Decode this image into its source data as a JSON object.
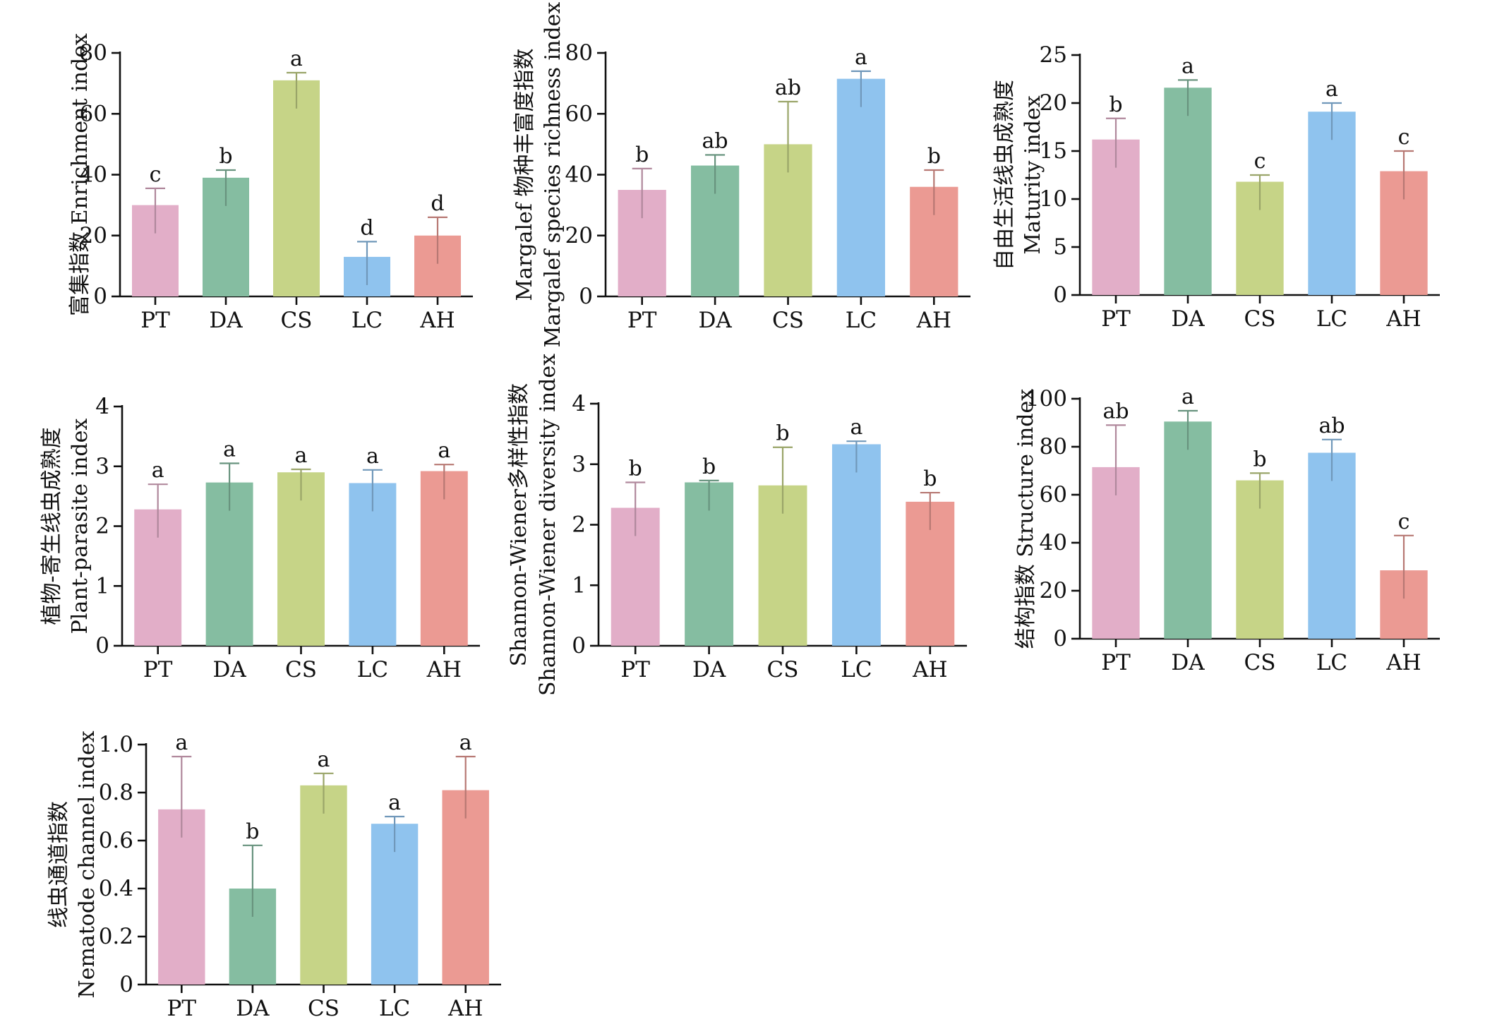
{
  "colors": {
    "PT": "#e2aec8",
    "DA": "#85bda1",
    "CS": "#c6d487",
    "LC": "#8fc3ee",
    "AH": "#eb9a93"
  },
  "chart_data": [
    {
      "type": "bar",
      "ylabel": [
        "富集指数 Enrichment index"
      ],
      "categories": [
        "PT",
        "DA",
        "CS",
        "LC",
        "AH"
      ],
      "values": [
        30,
        39,
        71,
        13,
        20
      ],
      "errors": [
        5.5,
        2.5,
        2.5,
        5,
        6
      ],
      "significance": [
        "c",
        "b",
        "a",
        "d",
        "d"
      ],
      "ylim": [
        0,
        80
      ],
      "yticks": [
        "0",
        "20",
        "40",
        "60",
        "80"
      ]
    },
    {
      "type": "bar",
      "ylabel": [
        "Margalef 物种丰富度指数",
        "Margalef species richness index"
      ],
      "categories": [
        "PT",
        "DA",
        "CS",
        "LC",
        "AH"
      ],
      "values": [
        35,
        43,
        50,
        71.5,
        36
      ],
      "errors": [
        7,
        3.5,
        14,
        2.5,
        5.5
      ],
      "significance": [
        "b",
        "ab",
        "ab",
        "a",
        "b"
      ],
      "ylim": [
        0,
        80
      ],
      "yticks": [
        "0",
        "20",
        "40",
        "60",
        "80"
      ]
    },
    {
      "type": "bar",
      "ylabel": [
        "自由生活线虫成熟度",
        "Maturity index"
      ],
      "categories": [
        "PT",
        "DA",
        "CS",
        "LC",
        "AH"
      ],
      "values": [
        16.2,
        21.6,
        11.8,
        19.1,
        12.9
      ],
      "errors": [
        2.2,
        0.8,
        0.7,
        0.9,
        2.1
      ],
      "significance": [
        "b",
        "a",
        "c",
        "a",
        "c"
      ],
      "ylim": [
        0,
        25
      ],
      "yticks": [
        "0",
        "5",
        "10",
        "15",
        "20",
        "25"
      ]
    },
    {
      "type": "bar",
      "ylabel": [
        "植物-寄生线虫成熟度",
        "Plant-parasite index"
      ],
      "categories": [
        "PT",
        "DA",
        "CS",
        "LC",
        "AH"
      ],
      "values": [
        2.28,
        2.73,
        2.9,
        2.72,
        2.92
      ],
      "errors": [
        0.42,
        0.32,
        0.05,
        0.22,
        0.11
      ],
      "significance": [
        "a",
        "a",
        "a",
        "a",
        "a"
      ],
      "ylim": [
        0,
        4
      ],
      "yticks": [
        "0",
        "1",
        "2",
        "3",
        "4"
      ]
    },
    {
      "type": "bar",
      "ylabel": [
        "Shannon-Wiener多样性指数",
        "Shannon-Wiener diversity index"
      ],
      "categories": [
        "PT",
        "DA",
        "CS",
        "LC",
        "AH"
      ],
      "values": [
        2.28,
        2.7,
        2.65,
        3.33,
        2.38
      ],
      "errors": [
        0.42,
        0.03,
        0.63,
        0.05,
        0.15
      ],
      "significance": [
        "b",
        "b",
        "b",
        "a",
        "b"
      ],
      "ylim": [
        0,
        4
      ],
      "yticks": [
        "0",
        "1",
        "2",
        "3",
        "4"
      ]
    },
    {
      "type": "bar",
      "ylabel": [
        "结构指数 Structure index"
      ],
      "categories": [
        "PT",
        "DA",
        "CS",
        "LC",
        "AH"
      ],
      "values": [
        71.5,
        90.5,
        66,
        77.5,
        28.5
      ],
      "errors": [
        17.5,
        4.5,
        3,
        5.5,
        14.5
      ],
      "significance": [
        "ab",
        "a",
        "b",
        "ab",
        "c"
      ],
      "ylim": [
        0,
        100
      ],
      "yticks": [
        "0",
        "20",
        "40",
        "60",
        "80",
        "100"
      ]
    },
    {
      "type": "bar",
      "ylabel": [
        "线虫通道指数",
        "Nematode channel index"
      ],
      "categories": [
        "PT",
        "DA",
        "CS",
        "LC",
        "AH"
      ],
      "values": [
        0.73,
        0.4,
        0.83,
        0.67,
        0.81
      ],
      "errors": [
        0.22,
        0.18,
        0.05,
        0.03,
        0.14
      ],
      "significance": [
        "a",
        "b",
        "a",
        "a",
        "a"
      ],
      "ylim": [
        0,
        1
      ],
      "yticks": [
        "0",
        "0.2",
        "0.4",
        "0.6",
        "0.8",
        "1.0"
      ]
    }
  ]
}
